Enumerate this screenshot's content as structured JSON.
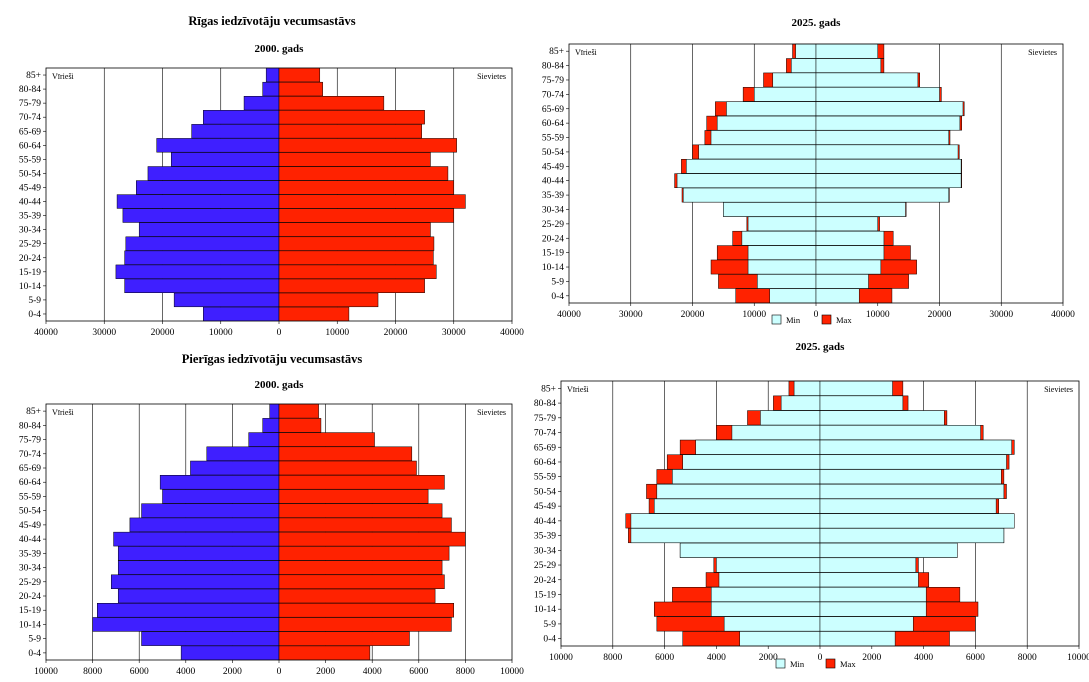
{
  "headings": {
    "riga": "Rīgas iedzīvotāju vecumsastāvs",
    "pieriga": "Pierīgas iedzīvotāju vecumsastāvs"
  },
  "colors": {
    "male": "#3f1fff",
    "female": "#ff2200",
    "min": "#ccffff",
    "max": "#ff2200",
    "grid": "#000000"
  },
  "chart_data": [
    {
      "type": "bar",
      "subtype": "population-pyramid",
      "title": "2000. gads",
      "left_label": "Vīrieši",
      "right_label": "Sievietes",
      "categories": [
        "85+",
        "80-84",
        "75-79",
        "70-74",
        "65-69",
        "60-64",
        "55-59",
        "50-54",
        "45-49",
        "40-44",
        "35-39",
        "30-34",
        "25-29",
        "20-24",
        "15-19",
        "10-14",
        "5-9",
        "0-4"
      ],
      "xlim": [
        -40000,
        40000
      ],
      "xticks": [
        -40000,
        -30000,
        -20000,
        -10000,
        0,
        10000,
        20000,
        30000,
        40000
      ],
      "xtick_labels": [
        "40000",
        "30000",
        "20000",
        "10000",
        "0",
        "10000",
        "20000",
        "30000",
        "40000"
      ],
      "series": [
        {
          "name": "Vīrieši",
          "values": [
            2200,
            2800,
            6000,
            13000,
            15000,
            21000,
            18500,
            22500,
            24500,
            27800,
            26800,
            24000,
            26300,
            26500,
            28000,
            26500,
            18000,
            13000
          ]
        },
        {
          "name": "Sievietes",
          "values": [
            7000,
            7500,
            18000,
            25000,
            24500,
            30500,
            26000,
            29000,
            30000,
            32000,
            30000,
            26000,
            26600,
            26500,
            27000,
            25000,
            17000,
            12000
          ]
        }
      ],
      "legend": []
    },
    {
      "type": "bar",
      "subtype": "population-pyramid-range",
      "title": "2025. gads",
      "left_label": "Vīrieši",
      "right_label": "Sievietes",
      "categories": [
        "85+",
        "80-84",
        "75-79",
        "70-74",
        "65-69",
        "60-64",
        "55-59",
        "50-54",
        "45-49",
        "40-44",
        "35-39",
        "30-34",
        "25-29",
        "20-24",
        "15-19",
        "10-14",
        "5-9",
        "0-4"
      ],
      "xlim": [
        -40000,
        40000
      ],
      "xticks": [
        -40000,
        -30000,
        -20000,
        -10000,
        0,
        10000,
        20000,
        30000,
        40000
      ],
      "xtick_labels": [
        "40000",
        "30000",
        "20000",
        "10000",
        "0",
        "10000",
        "20000",
        "30000",
        "40000"
      ],
      "series": [
        {
          "name": "Min",
          "values_male": [
            3300,
            4000,
            7000,
            10000,
            14500,
            16000,
            17000,
            19000,
            21000,
            22500,
            21500,
            15000,
            11000,
            12000,
            11000,
            11000,
            9500,
            7500
          ],
          "values_female": [
            10000,
            10500,
            16500,
            20000,
            23800,
            23300,
            21500,
            23000,
            23500,
            23500,
            21500,
            14500,
            10000,
            11000,
            11000,
            10500,
            8500,
            7000
          ]
        },
        {
          "name": "Max",
          "values_male": [
            3800,
            4800,
            8500,
            11800,
            16300,
            17700,
            18000,
            20000,
            21800,
            22900,
            21700,
            15000,
            11200,
            13500,
            16000,
            17000,
            15800,
            13000
          ],
          "values_female": [
            11000,
            11000,
            16800,
            20300,
            24000,
            23600,
            21700,
            23200,
            23600,
            23600,
            21600,
            14600,
            10300,
            12500,
            15300,
            16300,
            15000,
            12300
          ]
        }
      ],
      "legend": [
        "Min",
        "Max"
      ],
      "legend_position": "bottom-center"
    },
    {
      "type": "bar",
      "subtype": "population-pyramid",
      "title": "2000. gads",
      "left_label": "Vīrieši",
      "right_label": "Sievietes",
      "categories": [
        "85+",
        "80-84",
        "75-79",
        "70-74",
        "65-69",
        "60-64",
        "55-59",
        "50-54",
        "45-49",
        "40-44",
        "35-39",
        "30-34",
        "25-29",
        "20-24",
        "15-19",
        "10-14",
        "5-9",
        "0-4"
      ],
      "xlim": [
        -10000,
        10000
      ],
      "xticks": [
        -10000,
        -8000,
        -6000,
        -4000,
        -2000,
        0,
        2000,
        4000,
        6000,
        8000,
        10000
      ],
      "xtick_labels": [
        "10000",
        "8000",
        "6000",
        "4000",
        "2000",
        "0",
        "2000",
        "4000",
        "6000",
        "8000",
        "10000"
      ],
      "series": [
        {
          "name": "Vīrieši",
          "values": [
            400,
            700,
            1300,
            3100,
            3800,
            5100,
            5000,
            5900,
            6400,
            7100,
            6900,
            6900,
            7200,
            6900,
            7800,
            8000,
            5900,
            4200
          ]
        },
        {
          "name": "Sievietes",
          "values": [
            1700,
            1800,
            4100,
            5700,
            5900,
            7100,
            6400,
            7000,
            7400,
            8000,
            7300,
            7000,
            7100,
            6700,
            7500,
            7400,
            5600,
            3900
          ]
        }
      ],
      "legend": []
    },
    {
      "type": "bar",
      "subtype": "population-pyramid-range",
      "title": "2025. gads",
      "left_label": "Vīrieši",
      "right_label": "Sievietes",
      "categories": [
        "85+",
        "80-84",
        "75-79",
        "70-74",
        "65-69",
        "60-64",
        "55-59",
        "50-54",
        "45-49",
        "40-44",
        "35-39",
        "30-34",
        "25-29",
        "20-24",
        "15-19",
        "10-14",
        "5-9",
        "0-4"
      ],
      "xlim": [
        -10000,
        10000
      ],
      "xticks": [
        -10000,
        -8000,
        -6000,
        -4000,
        -2000,
        0,
        2000,
        4000,
        6000,
        8000,
        10000
      ],
      "xtick_labels": [
        "10000",
        "8000",
        "6000",
        "4000",
        "2000",
        "0",
        "2000",
        "4000",
        "6000",
        "8000",
        "10000"
      ],
      "series": [
        {
          "name": "Min",
          "values_male": [
            1000,
            1500,
            2300,
            3400,
            4800,
            5300,
            5700,
            6300,
            6400,
            7300,
            7300,
            5400,
            4000,
            3900,
            4200,
            4200,
            3700,
            3100
          ],
          "values_female": [
            2800,
            3200,
            4800,
            6200,
            7400,
            7200,
            7000,
            7100,
            6800,
            7500,
            7100,
            5300,
            3700,
            3800,
            4100,
            4100,
            3600,
            2900
          ]
        },
        {
          "name": "Max",
          "values_male": [
            1200,
            1800,
            2800,
            4000,
            5400,
            5900,
            6300,
            6700,
            6600,
            7500,
            7400,
            5400,
            4100,
            4400,
            5700,
            6400,
            6300,
            5300
          ],
          "values_female": [
            3200,
            3400,
            4900,
            6300,
            7500,
            7300,
            7100,
            7200,
            6900,
            7500,
            7100,
            5300,
            3800,
            4200,
            5400,
            6100,
            6000,
            5000
          ]
        }
      ],
      "legend": [
        "Min",
        "Max"
      ],
      "legend_position": "bottom-center"
    }
  ]
}
